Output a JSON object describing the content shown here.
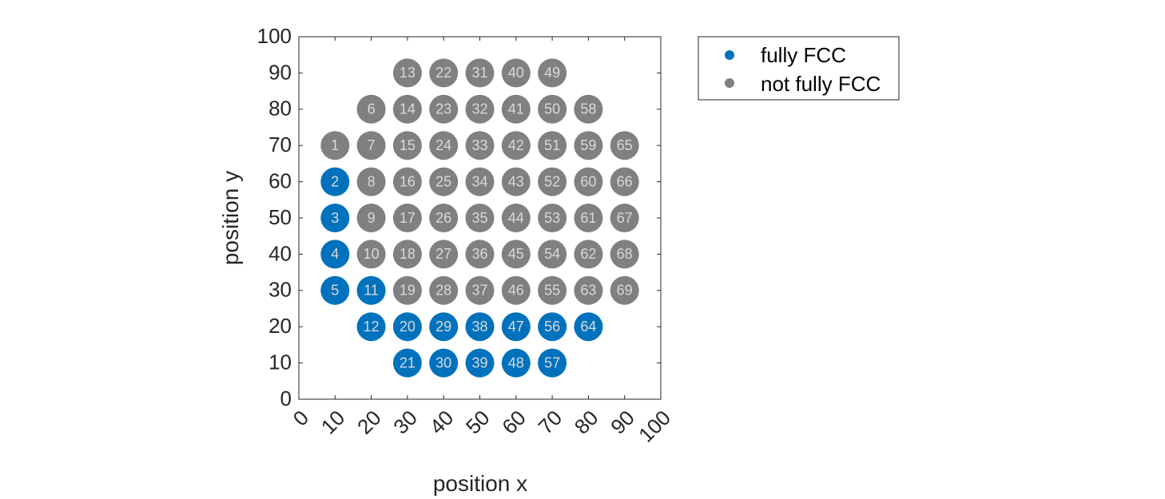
{
  "chart_data": {
    "type": "scatter",
    "title": "",
    "xlabel": "position x",
    "ylabel": "position y",
    "xlim": [
      0,
      100
    ],
    "ylim": [
      0,
      100
    ],
    "xticks": [
      "0",
      "10",
      "20",
      "30",
      "40",
      "50",
      "60",
      "70",
      "80",
      "90",
      "100"
    ],
    "yticks": [
      "0",
      "10",
      "20",
      "30",
      "40",
      "50",
      "60",
      "70",
      "80",
      "90",
      "100"
    ],
    "grid": false,
    "legend_position": "outside-top-right",
    "series": [
      {
        "name": "fully FCC",
        "color": "#0072BD",
        "points": [
          {
            "id": "2",
            "x": 10,
            "y": 60
          },
          {
            "id": "3",
            "x": 10,
            "y": 50
          },
          {
            "id": "4",
            "x": 10,
            "y": 40
          },
          {
            "id": "5",
            "x": 10,
            "y": 30
          },
          {
            "id": "11",
            "x": 20,
            "y": 30
          },
          {
            "id": "12",
            "x": 20,
            "y": 20
          },
          {
            "id": "20",
            "x": 30,
            "y": 20
          },
          {
            "id": "21",
            "x": 30,
            "y": 10
          },
          {
            "id": "29",
            "x": 40,
            "y": 20
          },
          {
            "id": "30",
            "x": 40,
            "y": 10
          },
          {
            "id": "38",
            "x": 50,
            "y": 20
          },
          {
            "id": "39",
            "x": 50,
            "y": 10
          },
          {
            "id": "47",
            "x": 60,
            "y": 20
          },
          {
            "id": "48",
            "x": 60,
            "y": 10
          },
          {
            "id": "56",
            "x": 70,
            "y": 20
          },
          {
            "id": "57",
            "x": 70,
            "y": 10
          },
          {
            "id": "64",
            "x": 80,
            "y": 20
          }
        ]
      },
      {
        "name": "not fully FCC",
        "color": "#808080",
        "points": [
          {
            "id": "1",
            "x": 10,
            "y": 70
          },
          {
            "id": "6",
            "x": 20,
            "y": 80
          },
          {
            "id": "7",
            "x": 20,
            "y": 70
          },
          {
            "id": "8",
            "x": 20,
            "y": 60
          },
          {
            "id": "9",
            "x": 20,
            "y": 50
          },
          {
            "id": "10",
            "x": 20,
            "y": 40
          },
          {
            "id": "13",
            "x": 30,
            "y": 90
          },
          {
            "id": "14",
            "x": 30,
            "y": 80
          },
          {
            "id": "15",
            "x": 30,
            "y": 70
          },
          {
            "id": "16",
            "x": 30,
            "y": 60
          },
          {
            "id": "17",
            "x": 30,
            "y": 50
          },
          {
            "id": "18",
            "x": 30,
            "y": 40
          },
          {
            "id": "19",
            "x": 30,
            "y": 30
          },
          {
            "id": "22",
            "x": 40,
            "y": 90
          },
          {
            "id": "23",
            "x": 40,
            "y": 80
          },
          {
            "id": "24",
            "x": 40,
            "y": 70
          },
          {
            "id": "25",
            "x": 40,
            "y": 60
          },
          {
            "id": "26",
            "x": 40,
            "y": 50
          },
          {
            "id": "27",
            "x": 40,
            "y": 40
          },
          {
            "id": "28",
            "x": 40,
            "y": 30
          },
          {
            "id": "31",
            "x": 50,
            "y": 90
          },
          {
            "id": "32",
            "x": 50,
            "y": 80
          },
          {
            "id": "33",
            "x": 50,
            "y": 70
          },
          {
            "id": "34",
            "x": 50,
            "y": 60
          },
          {
            "id": "35",
            "x": 50,
            "y": 50
          },
          {
            "id": "36",
            "x": 50,
            "y": 40
          },
          {
            "id": "37",
            "x": 50,
            "y": 30
          },
          {
            "id": "40",
            "x": 60,
            "y": 90
          },
          {
            "id": "41",
            "x": 60,
            "y": 80
          },
          {
            "id": "42",
            "x": 60,
            "y": 70
          },
          {
            "id": "43",
            "x": 60,
            "y": 60
          },
          {
            "id": "44",
            "x": 60,
            "y": 50
          },
          {
            "id": "45",
            "x": 60,
            "y": 40
          },
          {
            "id": "46",
            "x": 60,
            "y": 30
          },
          {
            "id": "49",
            "x": 70,
            "y": 90
          },
          {
            "id": "50",
            "x": 70,
            "y": 80
          },
          {
            "id": "51",
            "x": 70,
            "y": 70
          },
          {
            "id": "52",
            "x": 70,
            "y": 60
          },
          {
            "id": "53",
            "x": 70,
            "y": 50
          },
          {
            "id": "54",
            "x": 70,
            "y": 40
          },
          {
            "id": "55",
            "x": 70,
            "y": 30
          },
          {
            "id": "58",
            "x": 80,
            "y": 80
          },
          {
            "id": "59",
            "x": 80,
            "y": 70
          },
          {
            "id": "60",
            "x": 80,
            "y": 60
          },
          {
            "id": "61",
            "x": 80,
            "y": 50
          },
          {
            "id": "62",
            "x": 80,
            "y": 40
          },
          {
            "id": "63",
            "x": 80,
            "y": 30
          },
          {
            "id": "65",
            "x": 90,
            "y": 70
          },
          {
            "id": "66",
            "x": 90,
            "y": 60
          },
          {
            "id": "67",
            "x": 90,
            "y": 50
          },
          {
            "id": "68",
            "x": 90,
            "y": 40
          },
          {
            "id": "69",
            "x": 90,
            "y": 30
          }
        ]
      }
    ]
  }
}
